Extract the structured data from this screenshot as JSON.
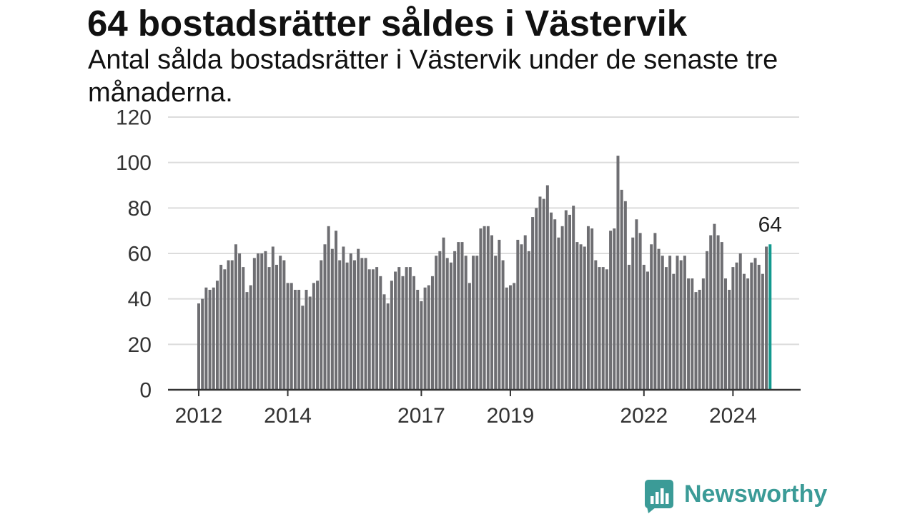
{
  "chart_data": {
    "type": "bar",
    "title": "64 bostadsrätter såldes i Västervik",
    "subtitle": "Antal sålda bostadsrätter i Västervik under de senaste tre månaderna.",
    "x": [
      "2012-01",
      "2012-02",
      "2012-03",
      "2012-04",
      "2012-05",
      "2012-06",
      "2012-07",
      "2012-08",
      "2012-09",
      "2012-10",
      "2012-11",
      "2012-12",
      "2013-01",
      "2013-02",
      "2013-03",
      "2013-04",
      "2013-05",
      "2013-06",
      "2013-07",
      "2013-08",
      "2013-09",
      "2013-10",
      "2013-11",
      "2013-12",
      "2014-01",
      "2014-02",
      "2014-03",
      "2014-04",
      "2014-05",
      "2014-06",
      "2014-07",
      "2014-08",
      "2014-09",
      "2014-10",
      "2014-11",
      "2014-12",
      "2015-01",
      "2015-02",
      "2015-03",
      "2015-04",
      "2015-05",
      "2015-06",
      "2015-07",
      "2015-08",
      "2015-09",
      "2015-10",
      "2015-11",
      "2015-12",
      "2016-01",
      "2016-02",
      "2016-03",
      "2016-04",
      "2016-05",
      "2016-06",
      "2016-07",
      "2016-08",
      "2016-09",
      "2016-10",
      "2016-11",
      "2016-12",
      "2017-01",
      "2017-02",
      "2017-03",
      "2017-04",
      "2017-05",
      "2017-06",
      "2017-07",
      "2017-08",
      "2017-09",
      "2017-10",
      "2017-11",
      "2017-12",
      "2018-01",
      "2018-02",
      "2018-03",
      "2018-04",
      "2018-05",
      "2018-06",
      "2018-07",
      "2018-08",
      "2018-09",
      "2018-10",
      "2018-11",
      "2018-12",
      "2019-01",
      "2019-02",
      "2019-03",
      "2019-04",
      "2019-05",
      "2019-06",
      "2019-07",
      "2019-08",
      "2019-09",
      "2019-10",
      "2019-11",
      "2019-12",
      "2020-01",
      "2020-02",
      "2020-03",
      "2020-04",
      "2020-05",
      "2020-06",
      "2020-07",
      "2020-08",
      "2020-09",
      "2020-10",
      "2020-11",
      "2020-12",
      "2021-01",
      "2021-02",
      "2021-03",
      "2021-04",
      "2021-05",
      "2021-06",
      "2021-07",
      "2021-08",
      "2021-09",
      "2021-10",
      "2021-11",
      "2021-12",
      "2022-01",
      "2022-02",
      "2022-03",
      "2022-04",
      "2022-05",
      "2022-06",
      "2022-07",
      "2022-08",
      "2022-09",
      "2022-10",
      "2022-11",
      "2022-12",
      "2023-01",
      "2023-02",
      "2023-03",
      "2023-04",
      "2023-05",
      "2023-06",
      "2023-07",
      "2023-08",
      "2023-09",
      "2023-10",
      "2023-11",
      "2023-12",
      "2024-01",
      "2024-02",
      "2024-03",
      "2024-04",
      "2024-05",
      "2024-06",
      "2024-07",
      "2024-08",
      "2024-09",
      "2024-10",
      "2024-11"
    ],
    "values": [
      38,
      40,
      45,
      44,
      45,
      48,
      55,
      53,
      57,
      57,
      64,
      60,
      54,
      43,
      46,
      58,
      60,
      60,
      61,
      54,
      63,
      55,
      59,
      57,
      47,
      47,
      44,
      44,
      37,
      44,
      41,
      47,
      48,
      57,
      64,
      72,
      62,
      70,
      57,
      63,
      56,
      60,
      57,
      62,
      58,
      58,
      53,
      53,
      54,
      50,
      42,
      38,
      48,
      52,
      54,
      50,
      54,
      54,
      50,
      44,
      39,
      45,
      46,
      50,
      59,
      61,
      67,
      58,
      56,
      61,
      65,
      65,
      59,
      47,
      59,
      59,
      71,
      72,
      72,
      68,
      59,
      66,
      57,
      45,
      46,
      47,
      66,
      64,
      68,
      61,
      76,
      80,
      85,
      84,
      90,
      78,
      75,
      67,
      72,
      79,
      77,
      81,
      65,
      64,
      63,
      72,
      71,
      57,
      54,
      54,
      53,
      70,
      71,
      103,
      88,
      83,
      55,
      67,
      75,
      69,
      55,
      52,
      64,
      69,
      62,
      59,
      54,
      59,
      51,
      59,
      57,
      59,
      49,
      49,
      43,
      44,
      49,
      61,
      68,
      73,
      68,
      65,
      49,
      44,
      54,
      56,
      60,
      51,
      49,
      56,
      58,
      55,
      51,
      63,
      64
    ],
    "ylim": [
      0,
      120
    ],
    "yticks": [
      0,
      20,
      40,
      60,
      80,
      100,
      120
    ],
    "xticks": [
      "2012",
      "2014",
      "2017",
      "2019",
      "2022",
      "2024"
    ],
    "grid": true,
    "highlight": {
      "x": "2024-11"
    },
    "annotations": [
      {
        "x": "2024-11",
        "label": "64"
      }
    ],
    "colors": {
      "bar": "#6e6e72",
      "highlight": "#12998e",
      "grid": "#dcdcdc",
      "axis": "#333333"
    }
  },
  "branding": {
    "name": "Newsworthy",
    "icon": "newsworthy-logo-icon",
    "color": "#3b9b97"
  }
}
